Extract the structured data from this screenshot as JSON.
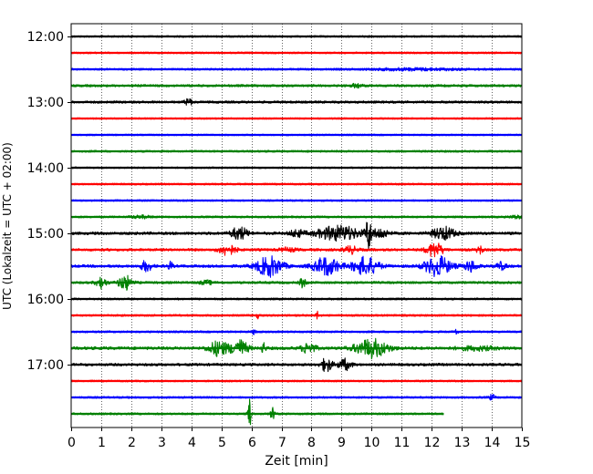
{
  "chart_data": {
    "type": "line",
    "title": "",
    "xlabel": "Zeit  [min]",
    "ylabel": "UTC (Lokalzeit = UTC + 02:00)",
    "xlim": [
      0,
      15
    ],
    "x_ticks": [
      0,
      1,
      2,
      3,
      4,
      5,
      6,
      7,
      8,
      9,
      10,
      11,
      12,
      13,
      14,
      15
    ],
    "x_grid": true,
    "row_minutes": 15,
    "start_time": "12:00",
    "y_tick_labels": [
      "12:00",
      "13:00",
      "14:00",
      "15:00",
      "16:00",
      "17:00"
    ],
    "color_cycle": [
      "#000000",
      "#ff0000",
      "#0000ff",
      "#008000"
    ],
    "traces": [
      {
        "time": "12:00",
        "color": "#000000",
        "end": 15,
        "noise": 0.9,
        "events": []
      },
      {
        "time": "12:15",
        "color": "#ff0000",
        "end": 15,
        "noise": 0.9,
        "events": []
      },
      {
        "time": "12:30",
        "color": "#0000ff",
        "end": 15,
        "noise": 1.0,
        "events": [
          {
            "t": 11.5,
            "amp": 1.2,
            "dur": 3.0
          }
        ]
      },
      {
        "time": "12:45",
        "color": "#008000",
        "end": 15,
        "noise": 1.2,
        "events": [
          {
            "t": 9.5,
            "amp": 2,
            "dur": 0.3
          }
        ]
      },
      {
        "time": "13:00",
        "color": "#000000",
        "end": 15,
        "noise": 1.2,
        "events": [
          {
            "t": 3.9,
            "amp": 4,
            "dur": 0.2
          }
        ]
      },
      {
        "time": "13:15",
        "color": "#ff0000",
        "end": 15,
        "noise": 0.8,
        "events": []
      },
      {
        "time": "13:30",
        "color": "#0000ff",
        "end": 15,
        "noise": 0.8,
        "events": []
      },
      {
        "time": "13:45",
        "color": "#008000",
        "end": 15,
        "noise": 1.0,
        "events": []
      },
      {
        "time": "14:00",
        "color": "#000000",
        "end": 15,
        "noise": 0.8,
        "events": []
      },
      {
        "time": "14:15",
        "color": "#ff0000",
        "end": 15,
        "noise": 0.9,
        "events": []
      },
      {
        "time": "14:30",
        "color": "#0000ff",
        "end": 15,
        "noise": 0.9,
        "events": []
      },
      {
        "time": "14:45",
        "color": "#008000",
        "end": 15,
        "noise": 1.0,
        "events": [
          {
            "t": 2.3,
            "amp": 1.5,
            "dur": 0.6
          },
          {
            "t": 14.8,
            "amp": 2,
            "dur": 0.3
          }
        ]
      },
      {
        "time": "15:00",
        "color": "#000000",
        "end": 15,
        "noise": 1.4,
        "events": [
          {
            "t": 5.6,
            "amp": 7,
            "dur": 0.5
          },
          {
            "t": 7.5,
            "amp": 4,
            "dur": 0.4
          },
          {
            "t": 8.9,
            "amp": 8,
            "dur": 1.4
          },
          {
            "t": 9.9,
            "amp": 18,
            "dur": 0.15
          },
          {
            "t": 10.3,
            "amp": 5,
            "dur": 0.5
          },
          {
            "t": 12.4,
            "amp": 7,
            "dur": 0.7
          }
        ]
      },
      {
        "time": "15:15",
        "color": "#ff0000",
        "end": 15,
        "noise": 1.3,
        "events": [
          {
            "t": 5.2,
            "amp": 6,
            "dur": 0.5
          },
          {
            "t": 7.2,
            "amp": 2,
            "dur": 0.5
          },
          {
            "t": 9.3,
            "amp": 4,
            "dur": 0.4
          },
          {
            "t": 12.1,
            "amp": 8,
            "dur": 0.5
          },
          {
            "t": 13.6,
            "amp": 5,
            "dur": 0.15
          }
        ]
      },
      {
        "time": "15:30",
        "color": "#0000ff",
        "end": 15,
        "noise": 1.4,
        "events": [
          {
            "t": 2.5,
            "amp": 6,
            "dur": 0.3
          },
          {
            "t": 3.3,
            "amp": 5,
            "dur": 0.1
          },
          {
            "t": 6.6,
            "amp": 11,
            "dur": 0.8
          },
          {
            "t": 8.5,
            "amp": 10,
            "dur": 0.8
          },
          {
            "t": 9.8,
            "amp": 10,
            "dur": 0.8
          },
          {
            "t": 12.2,
            "amp": 11,
            "dur": 0.8
          },
          {
            "t": 13.3,
            "amp": 6,
            "dur": 0.4
          },
          {
            "t": 14.3,
            "amp": 4,
            "dur": 0.3
          }
        ]
      },
      {
        "time": "15:45",
        "color": "#008000",
        "end": 15,
        "noise": 1.2,
        "events": [
          {
            "t": 1.0,
            "amp": 6,
            "dur": 0.3
          },
          {
            "t": 1.8,
            "amp": 8,
            "dur": 0.4
          },
          {
            "t": 4.5,
            "amp": 2,
            "dur": 0.4
          },
          {
            "t": 7.7,
            "amp": 5,
            "dur": 0.15
          }
        ]
      },
      {
        "time": "16:00",
        "color": "#000000",
        "end": 15,
        "noise": 1.0,
        "events": []
      },
      {
        "time": "16:15",
        "color": "#ff0000",
        "end": 15,
        "noise": 1.0,
        "events": [
          {
            "t": 6.2,
            "amp": 3,
            "dur": 0.1
          },
          {
            "t": 8.2,
            "amp": 4,
            "dur": 0.1
          }
        ]
      },
      {
        "time": "16:30",
        "color": "#0000ff",
        "end": 15,
        "noise": 1.0,
        "events": [
          {
            "t": 6.1,
            "amp": 3,
            "dur": 0.1
          },
          {
            "t": 12.8,
            "amp": 3,
            "dur": 0.1
          }
        ]
      },
      {
        "time": "16:45",
        "color": "#008000",
        "end": 15,
        "noise": 1.5,
        "events": [
          {
            "t": 4.9,
            "amp": 8,
            "dur": 0.6
          },
          {
            "t": 5.6,
            "amp": 9,
            "dur": 0.5
          },
          {
            "t": 6.4,
            "amp": 6,
            "dur": 0.1
          },
          {
            "t": 7.9,
            "amp": 6,
            "dur": 0.4
          },
          {
            "t": 10.0,
            "amp": 10,
            "dur": 1.0
          },
          {
            "t": 13.5,
            "amp": 2,
            "dur": 1.2
          }
        ]
      },
      {
        "time": "17:00",
        "color": "#000000",
        "end": 15,
        "noise": 1.3,
        "events": [
          {
            "t": 8.5,
            "amp": 8,
            "dur": 0.3
          },
          {
            "t": 9.1,
            "amp": 6,
            "dur": 0.4
          }
        ]
      },
      {
        "time": "17:15",
        "color": "#ff0000",
        "end": 15,
        "noise": 0.9,
        "events": []
      },
      {
        "time": "17:30",
        "color": "#0000ff",
        "end": 15,
        "noise": 1.0,
        "events": [
          {
            "t": 14.0,
            "amp": 3,
            "dur": 0.15
          }
        ]
      },
      {
        "time": "17:45",
        "color": "#008000",
        "end": 12.4,
        "noise": 1.0,
        "events": [
          {
            "t": 5.95,
            "amp": 16,
            "dur": 0.08
          },
          {
            "t": 6.7,
            "amp": 8,
            "dur": 0.08
          }
        ]
      }
    ]
  }
}
